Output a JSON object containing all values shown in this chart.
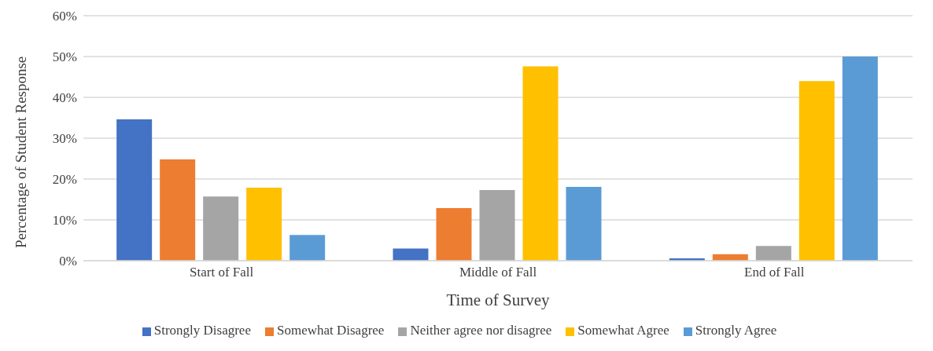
{
  "chart_data": {
    "type": "bar",
    "xlabel": "Time of Survey",
    "ylabel": "Percentage of Student Response",
    "categories": [
      "Start of Fall",
      "Middle of Fall",
      "End of Fall"
    ],
    "series": [
      {
        "name": "Strongly Disagree",
        "color": "#4472c4",
        "values": [
          34.6,
          3.0,
          0.6
        ]
      },
      {
        "name": "Somewhat Disagree",
        "color": "#ed7d31",
        "values": [
          24.8,
          12.9,
          1.6
        ]
      },
      {
        "name": "Neither agree nor disagree",
        "color": "#a5a5a5",
        "values": [
          15.7,
          17.3,
          3.6
        ]
      },
      {
        "name": "Somewhat Agree",
        "color": "#ffc000",
        "values": [
          17.9,
          47.6,
          44.0
        ]
      },
      {
        "name": "Strongly Agree",
        "color": "#5b9bd5",
        "values": [
          6.3,
          18.1,
          50.0
        ]
      }
    ],
    "ylim": [
      0,
      60
    ],
    "yticks": [
      {
        "value": 0,
        "label": "0%"
      },
      {
        "value": 10,
        "label": "10%"
      },
      {
        "value": 20,
        "label": "20%"
      },
      {
        "value": 30,
        "label": "30%"
      },
      {
        "value": 40,
        "label": "40%"
      },
      {
        "value": 50,
        "label": "50%"
      },
      {
        "value": 60,
        "label": "60%"
      }
    ],
    "grid": "y",
    "legend": "bottom"
  }
}
